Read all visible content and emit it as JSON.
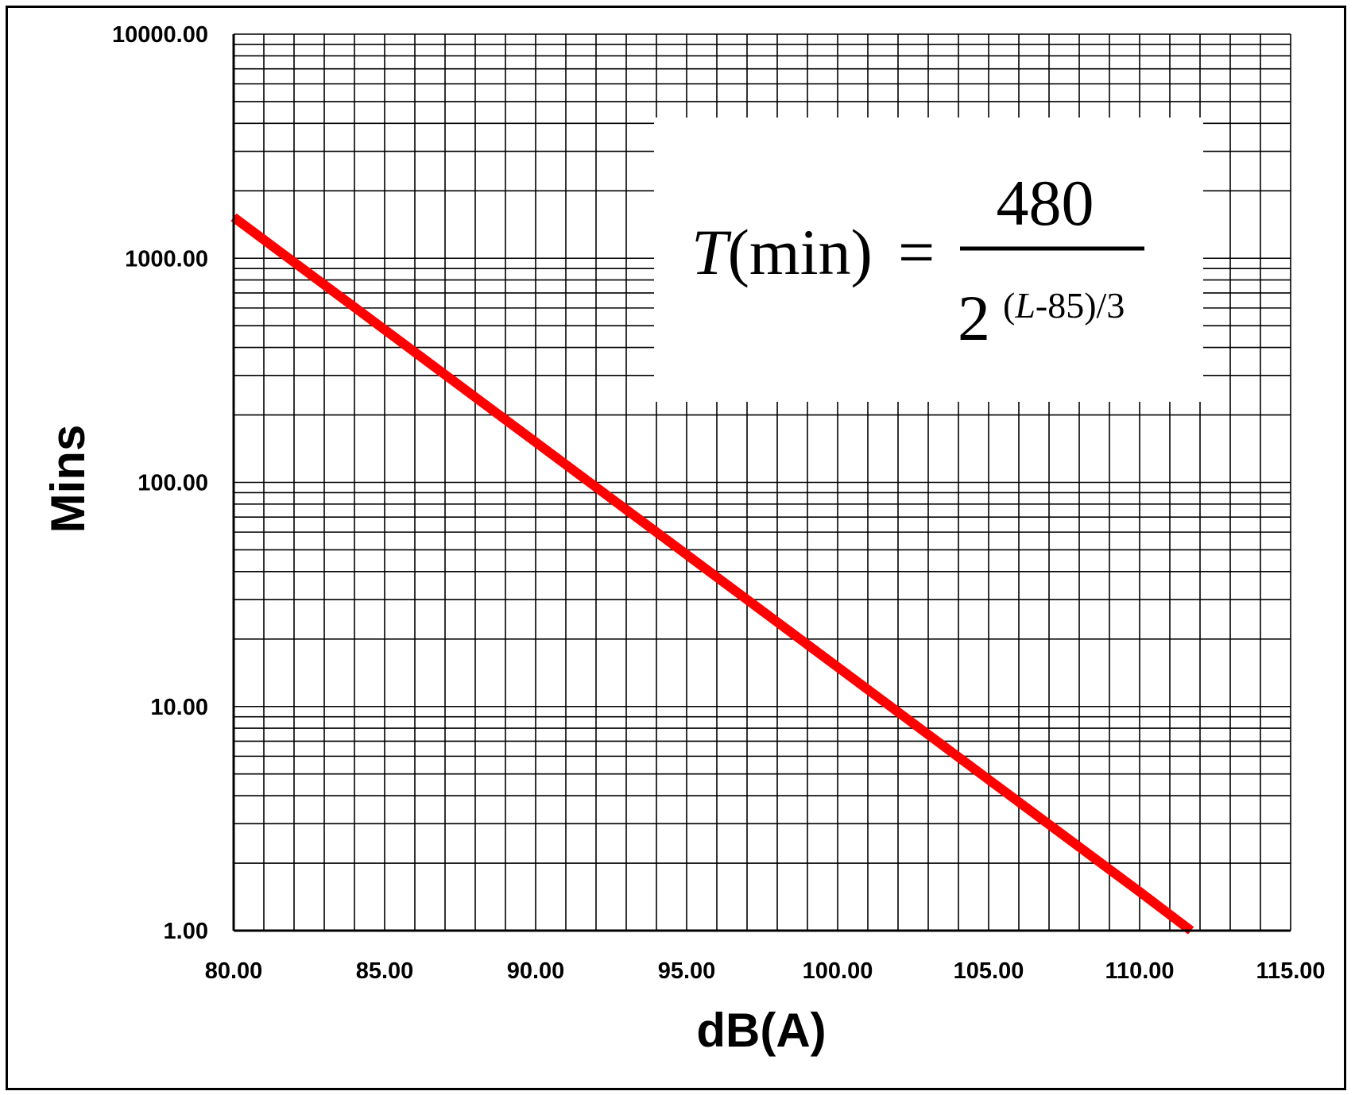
{
  "chart_data": {
    "type": "line",
    "xlabel": "dB(A)",
    "ylabel": "Mins",
    "xlim": [
      80,
      115
    ],
    "ylim": [
      1,
      10000
    ],
    "y_scale": "log",
    "grid": true,
    "x_ticks": [
      "80.00",
      "85.00",
      "90.00",
      "95.00",
      "100.00",
      "105.00",
      "110.00",
      "115.00"
    ],
    "y_ticks": [
      "1.00",
      "10.00",
      "100.00",
      "1000.00",
      "10000.00"
    ],
    "series": [
      {
        "color": "#ff0000",
        "x": [
          80,
          85,
          90,
          95,
          100,
          105,
          110,
          111.7
        ],
        "y": [
          1524,
          480,
          151.2,
          47.6,
          15,
          4.72,
          1.49,
          1.0
        ]
      }
    ],
    "annotation": {
      "lhs_var": "T",
      "lhs_unit": "(min)",
      "equals": "=",
      "numerator": "480",
      "base": "2",
      "exp_open": "(",
      "exp_var": "L",
      "exp_rest": "-85)/3"
    }
  }
}
